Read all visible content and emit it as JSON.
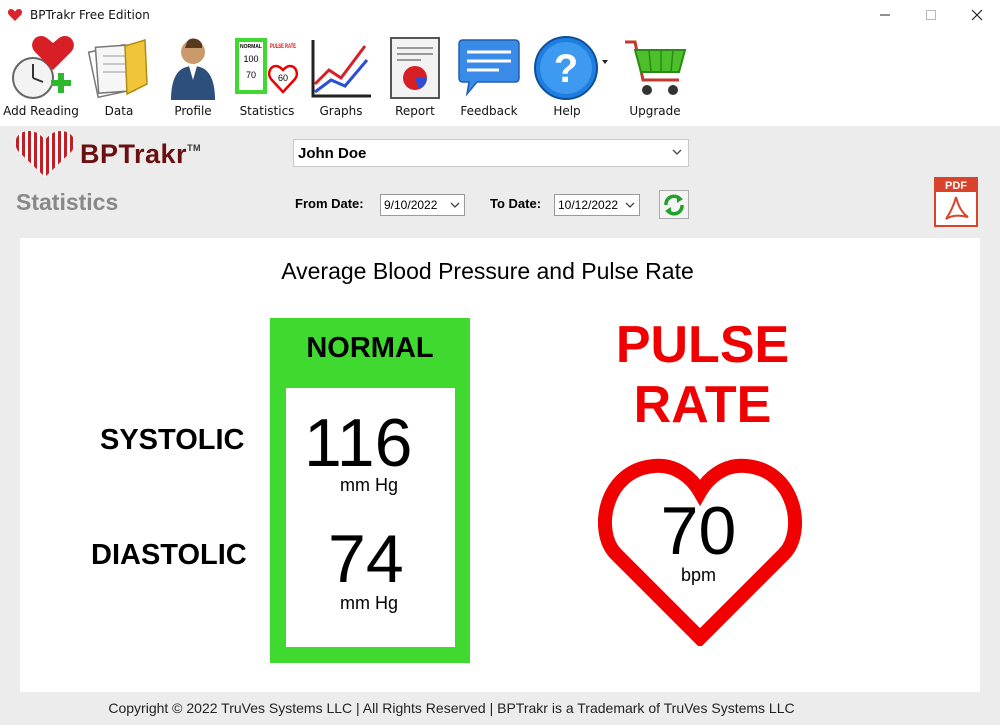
{
  "window": {
    "title": "BPTrakr Free Edition"
  },
  "toolbar": {
    "items": [
      {
        "label": "Add Reading",
        "icon": "add-reading-icon"
      },
      {
        "label": "Data",
        "icon": "data-icon"
      },
      {
        "label": "Profile",
        "icon": "profile-icon"
      },
      {
        "label": "Statistics",
        "icon": "statistics-icon"
      },
      {
        "label": "Graphs",
        "icon": "graphs-icon"
      },
      {
        "label": "Report",
        "icon": "report-icon"
      },
      {
        "label": "Feedback",
        "icon": "feedback-icon"
      },
      {
        "label": "Help",
        "icon": "help-icon"
      },
      {
        "label": "Upgrade",
        "icon": "cart-icon"
      }
    ],
    "statistics_icon_text": {
      "normal": "NORMAL",
      "sys": "100",
      "dia": "70",
      "pulse_rate": "PULSE RATE",
      "pulse": "60"
    }
  },
  "logo": {
    "text": "BPTrakr",
    "tm": "TM"
  },
  "page": {
    "heading": "Statistics"
  },
  "patient": {
    "selected": "John Doe"
  },
  "filters": {
    "from_label": "From Date:",
    "from_value": "9/10/2022",
    "to_label": "To Date:",
    "to_value": "10/12/2022"
  },
  "pdf": {
    "label": "PDF"
  },
  "stats": {
    "title": "Average Blood Pressure and Pulse Rate",
    "systolic_label": "SYSTOLIC",
    "diastolic_label": "DIASTOLIC",
    "category": "NORMAL",
    "systolic": "116",
    "diastolic": "74",
    "bp_unit": "mm Hg",
    "pulse_title_line1": "PULSE",
    "pulse_title_line2": "RATE",
    "pulse": "70",
    "pulse_unit": "bpm"
  },
  "colors": {
    "normal": "#3fd92f",
    "pulse": "#f00000",
    "logo": "#6b1010"
  },
  "footer": {
    "copyright": "Copyright © 2022 TruVes Systems LLC | All Rights Reserved | BPTrakr is a Trademark of TruVes Systems LLC"
  }
}
